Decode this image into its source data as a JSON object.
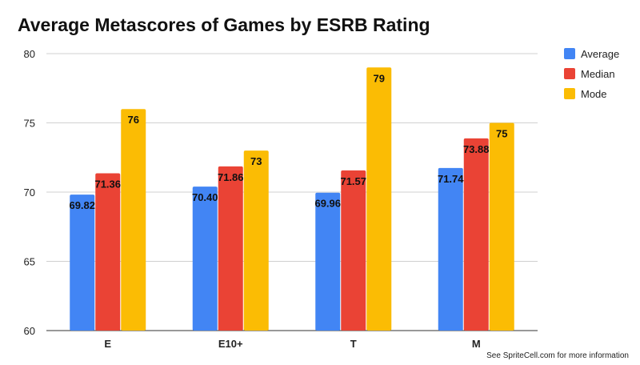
{
  "chart_data": {
    "type": "bar",
    "title": "Average Metascores of Games by ESRB Rating",
    "xlabel": "",
    "ylabel": "",
    "categories": [
      "E",
      "E10+",
      "T",
      "M"
    ],
    "series": [
      {
        "name": "Average",
        "color": "#4285F4",
        "values": [
          69.82,
          70.4,
          69.96,
          71.74
        ],
        "labels": [
          "69.82",
          "70.40",
          "69.96",
          "71.74"
        ]
      },
      {
        "name": "Median",
        "color": "#EA4335",
        "values": [
          71.36,
          71.86,
          71.57,
          73.88
        ],
        "labels": [
          "71.36",
          "71.86",
          "71.57",
          "73.88"
        ]
      },
      {
        "name": "Mode",
        "color": "#FBBC04",
        "values": [
          76,
          73,
          79,
          75
        ],
        "labels": [
          "76",
          "73",
          "79",
          "75"
        ]
      }
    ],
    "ylim": [
      60,
      80
    ],
    "yticks": [
      60,
      65,
      70,
      75,
      80
    ],
    "grid": true,
    "legend_position": "right"
  },
  "footnote": "See SpriteCell.com for more information"
}
